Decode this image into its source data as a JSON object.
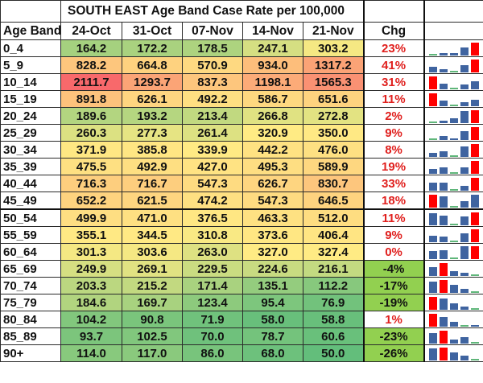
{
  "title": "SOUTH EAST Age Band Case Rate per 100,000",
  "headers": {
    "age_band": "Age Band",
    "dates": [
      "24-Oct",
      "31-Oct",
      "07-Nov",
      "14-Nov",
      "21-Nov"
    ],
    "chg": "Chg"
  },
  "colors": {
    "high": "#f8696b",
    "mid": "#ffeb84",
    "low": "#63be7b",
    "chg_positive_text": "#e0201e",
    "chg_negative_bg": "#92d050",
    "spark_bar": "#3f64a0",
    "spark_max": "#ff0000",
    "spark_min": "#5fb67a"
  },
  "rows": [
    {
      "age": "0_4",
      "values": [
        "164.2",
        "172.2",
        "178.5",
        "247.1",
        "303.2"
      ],
      "chg": "23%"
    },
    {
      "age": "5_9",
      "values": [
        "828.2",
        "664.8",
        "570.9",
        "934.0",
        "1317.2"
      ],
      "chg": "41%"
    },
    {
      "age": "10_14",
      "values": [
        "2111.7",
        "1293.7",
        "837.3",
        "1198.1",
        "1565.3"
      ],
      "chg": "31%"
    },
    {
      "age": "15_19",
      "values": [
        "891.8",
        "626.1",
        "492.2",
        "586.7",
        "651.6"
      ],
      "chg": "11%"
    },
    {
      "age": "20_24",
      "values": [
        "189.6",
        "193.2",
        "213.4",
        "266.8",
        "272.8"
      ],
      "chg": "2%"
    },
    {
      "age": "25_29",
      "values": [
        "260.3",
        "277.3",
        "261.4",
        "320.9",
        "350.0"
      ],
      "chg": "9%"
    },
    {
      "age": "30_34",
      "values": [
        "371.9",
        "385.8",
        "339.9",
        "442.2",
        "476.0"
      ],
      "chg": "8%"
    },
    {
      "age": "35_39",
      "values": [
        "475.5",
        "492.9",
        "427.0",
        "495.3",
        "589.9"
      ],
      "chg": "19%"
    },
    {
      "age": "40_44",
      "values": [
        "716.3",
        "716.7",
        "547.3",
        "626.7",
        "830.7"
      ],
      "chg": "33%"
    },
    {
      "age": "45_49",
      "values": [
        "652.2",
        "621.5",
        "474.2",
        "547.3",
        "646.5"
      ],
      "chg": "18%"
    },
    {
      "age": "50_54",
      "values": [
        "499.9",
        "471.0",
        "376.5",
        "463.3",
        "512.0"
      ],
      "chg": "11%"
    },
    {
      "age": "55_59",
      "values": [
        "355.1",
        "344.5",
        "310.8",
        "373.6",
        "406.4"
      ],
      "chg": "9%"
    },
    {
      "age": "60_64",
      "values": [
        "301.3",
        "303.6",
        "263.0",
        "327.0",
        "327.4"
      ],
      "chg": "0%"
    },
    {
      "age": "65_69",
      "values": [
        "249.9",
        "269.1",
        "229.5",
        "224.6",
        "216.1"
      ],
      "chg": "-4%"
    },
    {
      "age": "70_74",
      "values": [
        "203.3",
        "215.2",
        "171.4",
        "135.1",
        "112.2"
      ],
      "chg": "-17%"
    },
    {
      "age": "75_79",
      "values": [
        "184.6",
        "169.7",
        "123.4",
        "95.4",
        "76.9"
      ],
      "chg": "-19%"
    },
    {
      "age": "80_84",
      "values": [
        "104.2",
        "90.8",
        "71.9",
        "58.0",
        "58.8"
      ],
      "chg": "1%"
    },
    {
      "age": "85_89",
      "values": [
        "93.7",
        "102.5",
        "70.0",
        "78.7",
        "60.6"
      ],
      "chg": "-23%"
    },
    {
      "age": "90+",
      "values": [
        "114.0",
        "117.0",
        "86.0",
        "68.0",
        "50.0"
      ],
      "chg": "-26%"
    }
  ]
}
